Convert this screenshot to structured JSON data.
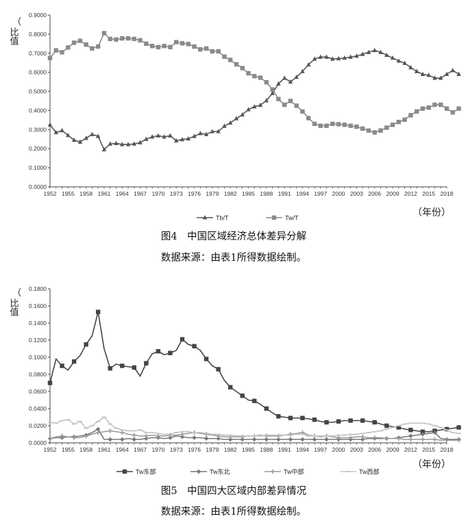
{
  "chart_data": [
    {
      "type": "line",
      "ylabel": "比值",
      "xlabel": "年份",
      "xunit": "（年份）",
      "yticks": [
        "0.0000",
        "0.1000",
        "0.2000",
        "0.3000",
        "0.4000",
        "0.5000",
        "0.6000",
        "0.7000",
        "0.8000",
        "0.9000"
      ],
      "ylim": [
        0,
        0.9
      ],
      "xticks": [
        "1952",
        "1955",
        "1958",
        "1961",
        "1964",
        "1967",
        "1970",
        "1973",
        "1976",
        "1979",
        "1982",
        "1985",
        "1988",
        "1991",
        "1994",
        "1997",
        "2000",
        "2003",
        "2006",
        "2009",
        "2012",
        "2015",
        "2018"
      ],
      "x_start": 1952,
      "x_end": 2018,
      "caption": "图4　中国区域经济总体差异分解",
      "source": "数据来源：由表1所得数据绘制。",
      "legend_position": "bottom",
      "series": [
        {
          "name": "Tb/T",
          "color": "#555555",
          "marker": "triangle",
          "values": [
            0.325,
            0.285,
            0.295,
            0.27,
            0.245,
            0.235,
            0.255,
            0.275,
            0.265,
            0.195,
            0.225,
            0.228,
            0.222,
            0.222,
            0.225,
            0.232,
            0.25,
            0.262,
            0.268,
            0.262,
            0.268,
            0.242,
            0.248,
            0.252,
            0.265,
            0.28,
            0.275,
            0.29,
            0.29,
            0.318,
            0.335,
            0.358,
            0.378,
            0.405,
            0.42,
            0.428,
            0.452,
            0.49,
            0.54,
            0.57,
            0.55,
            0.575,
            0.605,
            0.64,
            0.67,
            0.68,
            0.68,
            0.67,
            0.672,
            0.675,
            0.68,
            0.685,
            0.695,
            0.705,
            0.715,
            0.705,
            0.69,
            0.675,
            0.66,
            0.648,
            0.625,
            0.605,
            0.59,
            0.585,
            0.57,
            0.57,
            0.59,
            0.61,
            0.59
          ]
        },
        {
          "name": "Tw/T",
          "color": "#8a8a8a",
          "marker": "square",
          "values": [
            0.675,
            0.715,
            0.705,
            0.73,
            0.755,
            0.765,
            0.745,
            0.725,
            0.735,
            0.805,
            0.775,
            0.772,
            0.778,
            0.778,
            0.775,
            0.768,
            0.75,
            0.738,
            0.732,
            0.738,
            0.732,
            0.758,
            0.752,
            0.748,
            0.735,
            0.72,
            0.725,
            0.71,
            0.71,
            0.682,
            0.665,
            0.642,
            0.622,
            0.595,
            0.58,
            0.572,
            0.548,
            0.51,
            0.46,
            0.43,
            0.45,
            0.425,
            0.395,
            0.36,
            0.33,
            0.32,
            0.32,
            0.33,
            0.328,
            0.325,
            0.32,
            0.315,
            0.305,
            0.295,
            0.285,
            0.295,
            0.31,
            0.325,
            0.34,
            0.352,
            0.375,
            0.395,
            0.41,
            0.415,
            0.43,
            0.43,
            0.41,
            0.39,
            0.41
          ]
        }
      ]
    },
    {
      "type": "line",
      "ylabel": "比值",
      "xlabel": "年份",
      "xunit": "（年份）",
      "yticks": [
        "0.0000",
        "0.0200",
        "0.0400",
        "0.0600",
        "0.0800",
        "0.1000",
        "0.1200",
        "0.1400",
        "0.1600",
        "0.1800"
      ],
      "ylim": [
        0,
        0.18
      ],
      "xticks": [
        "1952",
        "1955",
        "1958",
        "1961",
        "1964",
        "1967",
        "1970",
        "1973",
        "1976",
        "1979",
        "1982",
        "1985",
        "1988",
        "1991",
        "1994",
        "1997",
        "2000",
        "2003",
        "2006",
        "2009",
        "2012",
        "2015",
        "2018"
      ],
      "x_start": 1952,
      "x_end": 2018,
      "caption": "图5　中国四大区域内部差异情况",
      "source": "数据来源：由表1所得数据绘制。",
      "legend_position": "bottom",
      "series": [
        {
          "name": "Tw东部",
          "color": "#444444",
          "marker": "square",
          "sample_every": 2,
          "values": [
            0.07,
            0.098,
            0.09,
            0.085,
            0.095,
            0.102,
            0.115,
            0.125,
            0.153,
            0.11,
            0.087,
            0.092,
            0.09,
            0.089,
            0.088,
            0.078,
            0.093,
            0.104,
            0.107,
            0.103,
            0.105,
            0.108,
            0.121,
            0.115,
            0.113,
            0.108,
            0.098,
            0.09,
            0.086,
            0.073,
            0.065,
            0.06,
            0.055,
            0.05,
            0.049,
            0.045,
            0.04,
            0.035,
            0.031,
            0.03,
            0.029,
            0.029,
            0.029,
            0.028,
            0.027,
            0.025,
            0.024,
            0.024,
            0.025,
            0.026,
            0.026,
            0.026,
            0.026,
            0.025,
            0.024,
            0.022,
            0.02,
            0.019,
            0.018,
            0.016,
            0.015,
            0.014,
            0.013,
            0.013,
            0.014,
            0.015,
            0.016,
            0.017,
            0.018
          ]
        },
        {
          "name": "Tw东北",
          "color": "#777777",
          "marker": "diamond",
          "sample_every": 2,
          "values": [
            0.005,
            0.006,
            0.006,
            0.007,
            0.007,
            0.008,
            0.009,
            0.012,
            0.016,
            0.004,
            0.004,
            0.004,
            0.004,
            0.005,
            0.004,
            0.004,
            0.005,
            0.006,
            0.006,
            0.005,
            0.006,
            0.008,
            0.007,
            0.006,
            0.006,
            0.006,
            0.005,
            0.005,
            0.005,
            0.004,
            0.004,
            0.004,
            0.004,
            0.004,
            0.004,
            0.004,
            0.004,
            0.004,
            0.004,
            0.004,
            0.004,
            0.004,
            0.004,
            0.004,
            0.004,
            0.004,
            0.004,
            0.004,
            0.004,
            0.004,
            0.004,
            0.004,
            0.004,
            0.005,
            0.005,
            0.005,
            0.005,
            0.005,
            0.006,
            0.007,
            0.008,
            0.009,
            0.01,
            0.011,
            0.012,
            0.005,
            0.004,
            0.004,
            0.004
          ]
        },
        {
          "name": "Tw中部",
          "color": "#999999",
          "marker": "cross",
          "sample_every": 2,
          "values": [
            0.005,
            0.007,
            0.008,
            0.007,
            0.006,
            0.006,
            0.008,
            0.01,
            0.012,
            0.013,
            0.014,
            0.013,
            0.012,
            0.01,
            0.009,
            0.008,
            0.008,
            0.009,
            0.008,
            0.008,
            0.009,
            0.009,
            0.01,
            0.011,
            0.012,
            0.011,
            0.01,
            0.009,
            0.008,
            0.007,
            0.007,
            0.007,
            0.007,
            0.008,
            0.008,
            0.009,
            0.008,
            0.008,
            0.008,
            0.009,
            0.01,
            0.011,
            0.012,
            0.009,
            0.008,
            0.007,
            0.008,
            0.007,
            0.006,
            0.006,
            0.006,
            0.007,
            0.007,
            0.006,
            0.006,
            0.006,
            0.005,
            0.005,
            0.005,
            0.004,
            0.004,
            0.004,
            0.004,
            0.004,
            0.004,
            0.003,
            0.003,
            0.003,
            0.003
          ]
        },
        {
          "name": "Tw西部",
          "color": "#c4c4c4",
          "marker": "dash",
          "sample_every": 1,
          "values": [
            0.024,
            0.023,
            0.026,
            0.027,
            0.022,
            0.025,
            0.017,
            0.02,
            0.025,
            0.03,
            0.022,
            0.017,
            0.015,
            0.014,
            0.014,
            0.015,
            0.012,
            0.012,
            0.011,
            0.01,
            0.01,
            0.012,
            0.013,
            0.013,
            0.012,
            0.012,
            0.011,
            0.01,
            0.01,
            0.009,
            0.009,
            0.008,
            0.008,
            0.008,
            0.008,
            0.008,
            0.009,
            0.009,
            0.009,
            0.009,
            0.009,
            0.01,
            0.01,
            0.008,
            0.008,
            0.008,
            0.008,
            0.008,
            0.009,
            0.009,
            0.01,
            0.01,
            0.011,
            0.012,
            0.013,
            0.014,
            0.016,
            0.018,
            0.02,
            0.022,
            0.023,
            0.023,
            0.023,
            0.022,
            0.02,
            0.018,
            0.015,
            0.012,
            0.011
          ]
        }
      ]
    }
  ]
}
